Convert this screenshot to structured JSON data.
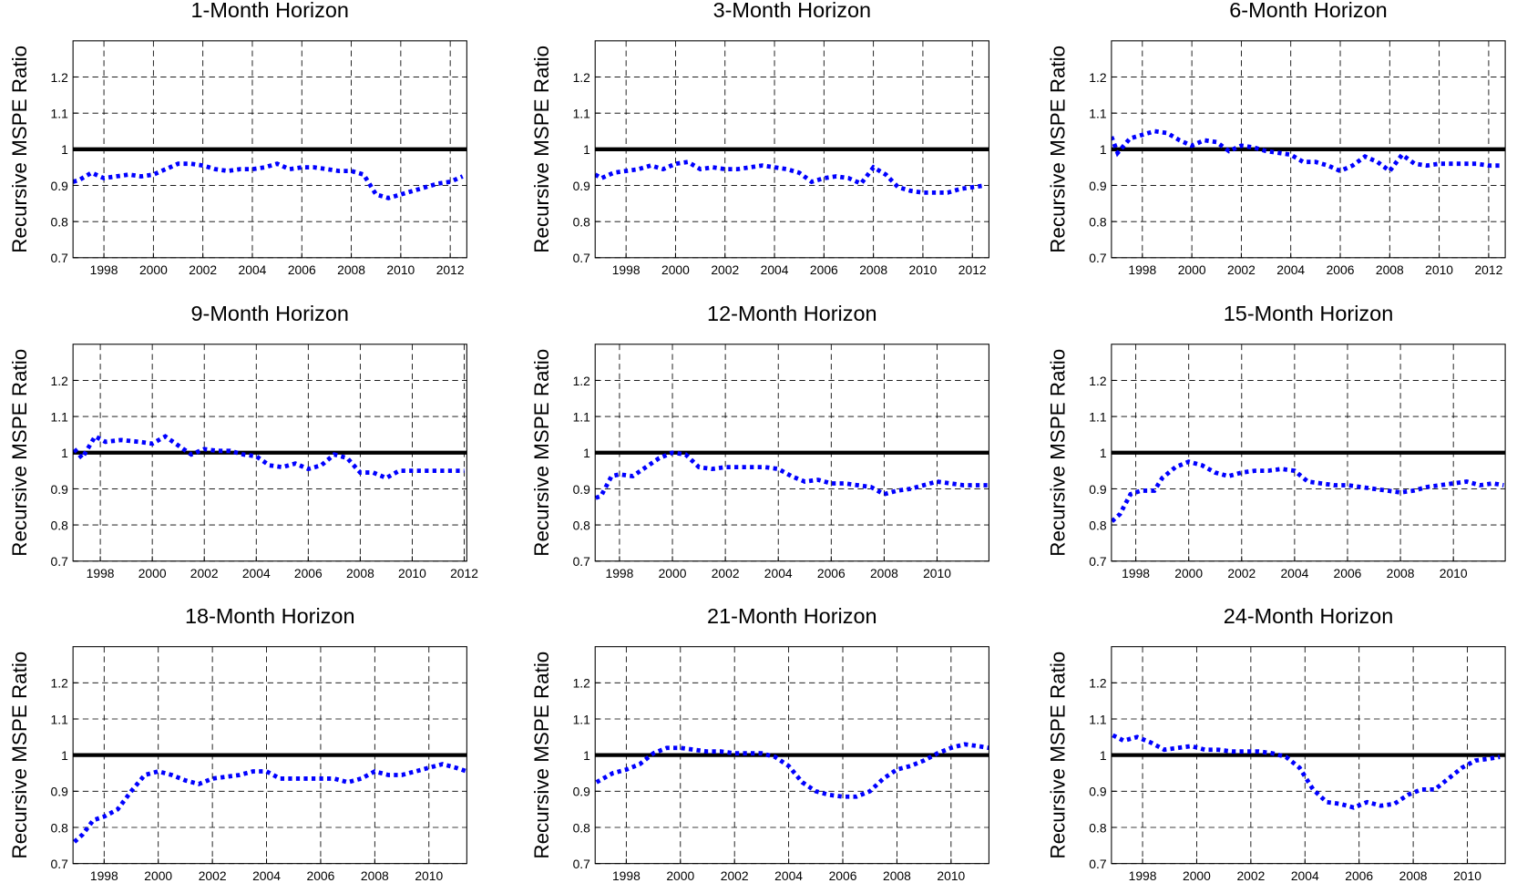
{
  "chart_data": [
    {
      "type": "line",
      "title": "1-Month Horizon",
      "ylabel": "Recursive MSPE Ratio",
      "color": "#0000ff",
      "reference_line": 1,
      "grid": true,
      "xlim": [
        1996.75,
        2012.67
      ],
      "xticks": [
        1998,
        2000,
        2002,
        2004,
        2006,
        2008,
        2010,
        2012
      ],
      "ylim": [
        0.7,
        1.3
      ],
      "yticks": [
        0.7,
        0.8,
        0.9,
        1,
        1.1,
        1.2
      ],
      "x": [
        1996.75,
        1997,
        1997.5,
        1998,
        1998.5,
        1999,
        1999.5,
        2000,
        2000.5,
        2001,
        2001.5,
        2002,
        2002.5,
        2003,
        2003.5,
        2004,
        2004.5,
        2005,
        2005.5,
        2006,
        2006.5,
        2007,
        2007.5,
        2008,
        2008.5,
        2009,
        2009.5,
        2010,
        2010.5,
        2011,
        2011.5,
        2012,
        2012.5
      ],
      "values": [
        0.91,
        0.915,
        0.935,
        0.92,
        0.925,
        0.93,
        0.925,
        0.93,
        0.945,
        0.96,
        0.96,
        0.955,
        0.945,
        0.94,
        0.945,
        0.945,
        0.95,
        0.96,
        0.945,
        0.95,
        0.95,
        0.945,
        0.94,
        0.94,
        0.93,
        0.875,
        0.865,
        0.875,
        0.885,
        0.895,
        0.905,
        0.91,
        0.925
      ]
    },
    {
      "type": "line",
      "title": "3-Month Horizon",
      "ylabel": "Recursive MSPE Ratio",
      "color": "#0000ff",
      "reference_line": 1,
      "grid": true,
      "xlim": [
        1996.75,
        2012.67
      ],
      "xticks": [
        1998,
        2000,
        2002,
        2004,
        2006,
        2008,
        2010,
        2012
      ],
      "ylim": [
        0.7,
        1.3
      ],
      "yticks": [
        0.7,
        0.8,
        0.9,
        1,
        1.1,
        1.2
      ],
      "x": [
        1996.75,
        1997,
        1997.5,
        1998,
        1998.5,
        1999,
        1999.5,
        2000,
        2000.5,
        2001,
        2001.5,
        2002,
        2002.5,
        2003,
        2003.5,
        2004,
        2004.5,
        2005,
        2005.5,
        2006,
        2006.5,
        2007,
        2007.5,
        2008,
        2008.5,
        2009,
        2009.5,
        2010,
        2010.5,
        2011,
        2011.5,
        2012,
        2012.5
      ],
      "values": [
        0.93,
        0.92,
        0.935,
        0.94,
        0.945,
        0.955,
        0.945,
        0.96,
        0.965,
        0.945,
        0.95,
        0.945,
        0.945,
        0.95,
        0.955,
        0.95,
        0.945,
        0.935,
        0.91,
        0.92,
        0.925,
        0.92,
        0.905,
        0.95,
        0.93,
        0.895,
        0.885,
        0.88,
        0.88,
        0.88,
        0.89,
        0.895,
        0.9
      ]
    },
    {
      "type": "line",
      "title": "6-Month Horizon",
      "ylabel": "Recursive MSPE Ratio",
      "color": "#0000ff",
      "reference_line": 1,
      "grid": true,
      "xlim": [
        1996.75,
        2012.67
      ],
      "xticks": [
        1998,
        2000,
        2002,
        2004,
        2006,
        2008,
        2010,
        2012
      ],
      "ylim": [
        0.7,
        1.3
      ],
      "yticks": [
        0.7,
        0.8,
        0.9,
        1,
        1.1,
        1.2
      ],
      "x": [
        1996.75,
        1997,
        1997.5,
        1998,
        1998.5,
        1999,
        1999.5,
        2000,
        2000.5,
        2001,
        2001.5,
        2002,
        2002.5,
        2003,
        2003.5,
        2004,
        2004.5,
        2005,
        2005.5,
        2006,
        2006.5,
        2007,
        2007.5,
        2008,
        2008.5,
        2009,
        2009.5,
        2010,
        2010.5,
        2011,
        2011.5,
        2012,
        2012.5
      ],
      "values": [
        1.035,
        0.99,
        1.03,
        1.04,
        1.05,
        1.045,
        1.025,
        1.01,
        1.025,
        1.02,
        0.995,
        1.01,
        1.005,
        0.995,
        0.99,
        0.985,
        0.965,
        0.965,
        0.955,
        0.94,
        0.955,
        0.98,
        0.965,
        0.94,
        0.985,
        0.96,
        0.955,
        0.96,
        0.96,
        0.96,
        0.96,
        0.955,
        0.955
      ]
    },
    {
      "type": "line",
      "title": "9-Month Horizon",
      "ylabel": "Recursive MSPE Ratio",
      "color": "#0000ff",
      "reference_line": 1,
      "grid": true,
      "xlim": [
        1996.95,
        2012.1
      ],
      "xticks": [
        1998,
        2000,
        2002,
        2004,
        2006,
        2008,
        2010,
        2012
      ],
      "ylim": [
        0.7,
        1.3
      ],
      "yticks": [
        0.7,
        0.8,
        0.9,
        1,
        1.1,
        1.2
      ],
      "x": [
        1997,
        1997.3,
        1997.8,
        1998.2,
        1998.8,
        1999.5,
        2000,
        2000.5,
        2001,
        2001.5,
        2002,
        2002.5,
        2003,
        2003.5,
        2004,
        2004.5,
        2005,
        2005.5,
        2006,
        2006.5,
        2007,
        2007.5,
        2008,
        2008.5,
        2009,
        2009.5,
        2010,
        2010.5,
        2011,
        2011.5,
        2012
      ],
      "values": [
        1.01,
        0.985,
        1.045,
        1.03,
        1.035,
        1.03,
        1.025,
        1.045,
        1.02,
        0.995,
        1.01,
        1.005,
        1.005,
        0.995,
        0.99,
        0.965,
        0.96,
        0.97,
        0.955,
        0.965,
        0.995,
        0.985,
        0.945,
        0.945,
        0.93,
        0.95,
        0.95,
        0.95,
        0.95,
        0.95,
        0.95
      ]
    },
    {
      "type": "line",
      "title": "12-Month Horizon",
      "ylabel": "Recursive MSPE Ratio",
      "color": "#0000ff",
      "reference_line": 1,
      "grid": true,
      "xlim": [
        1997.08,
        2011.96
      ],
      "xticks": [
        1998,
        2000,
        2002,
        2004,
        2006,
        2008,
        2010
      ],
      "ylim": [
        0.7,
        1.3
      ],
      "yticks": [
        0.7,
        0.8,
        0.9,
        1,
        1.1,
        1.2
      ],
      "x": [
        1997.1,
        1997.3,
        1997.7,
        1998,
        1998.5,
        1999,
        1999.5,
        2000,
        2000.5,
        2001,
        2001.5,
        2002,
        2002.5,
        2003,
        2003.5,
        2004,
        2004.5,
        2005,
        2005.5,
        2006,
        2006.5,
        2007,
        2007.5,
        2008,
        2008.5,
        2009,
        2009.5,
        2010,
        2010.5,
        2011,
        2011.5,
        2011.9
      ],
      "values": [
        0.875,
        0.88,
        0.935,
        0.94,
        0.935,
        0.96,
        0.985,
        1.0,
        0.995,
        0.96,
        0.955,
        0.96,
        0.96,
        0.96,
        0.96,
        0.955,
        0.935,
        0.92,
        0.925,
        0.915,
        0.915,
        0.91,
        0.905,
        0.885,
        0.895,
        0.9,
        0.91,
        0.92,
        0.915,
        0.91,
        0.91,
        0.91
      ]
    },
    {
      "type": "line",
      "title": "15-Month Horizon",
      "ylabel": "Recursive MSPE Ratio",
      "color": "#0000ff",
      "reference_line": 1,
      "grid": true,
      "xlim": [
        1997.08,
        2011.96
      ],
      "xticks": [
        1998,
        2000,
        2002,
        2004,
        2006,
        2008,
        2010
      ],
      "ylim": [
        0.7,
        1.3
      ],
      "yticks": [
        0.7,
        0.8,
        0.9,
        1,
        1.1,
        1.2
      ],
      "x": [
        1997.1,
        1997.4,
        1997.8,
        1998.2,
        1998.7,
        1999,
        1999.5,
        2000,
        2000.5,
        2001,
        2001.5,
        2002,
        2002.5,
        2003,
        2003.5,
        2004,
        2004.5,
        2005,
        2005.5,
        2006,
        2006.5,
        2007,
        2007.5,
        2008,
        2008.5,
        2009,
        2009.5,
        2010,
        2010.5,
        2011,
        2011.5,
        2011.9
      ],
      "values": [
        0.81,
        0.83,
        0.885,
        0.895,
        0.895,
        0.93,
        0.96,
        0.975,
        0.965,
        0.945,
        0.935,
        0.945,
        0.95,
        0.95,
        0.955,
        0.95,
        0.92,
        0.915,
        0.91,
        0.91,
        0.905,
        0.9,
        0.895,
        0.89,
        0.895,
        0.905,
        0.91,
        0.915,
        0.92,
        0.91,
        0.915,
        0.91
      ]
    },
    {
      "type": "line",
      "title": "18-Month Horizon",
      "ylabel": "Recursive MSPE Ratio",
      "color": "#0000ff",
      "reference_line": 1,
      "grid": true,
      "xlim": [
        1996.85,
        2011.4
      ],
      "xticks": [
        1998,
        2000,
        2002,
        2004,
        2006,
        2008,
        2010
      ],
      "ylim": [
        0.7,
        1.3
      ],
      "yticks": [
        0.7,
        0.8,
        0.9,
        1,
        1.1,
        1.2
      ],
      "x": [
        1996.9,
        1997.2,
        1997.6,
        1998,
        1998.5,
        1999,
        1999.5,
        2000,
        2000.5,
        2001,
        2001.5,
        2002,
        2002.5,
        2003,
        2003.5,
        2004,
        2004.5,
        2005,
        2005.5,
        2006,
        2006.5,
        2007,
        2007.5,
        2008,
        2008.5,
        2009,
        2009.5,
        2010,
        2010.5,
        2011,
        2011.4
      ],
      "values": [
        0.76,
        0.78,
        0.82,
        0.83,
        0.85,
        0.9,
        0.945,
        0.955,
        0.945,
        0.93,
        0.92,
        0.935,
        0.94,
        0.945,
        0.955,
        0.955,
        0.935,
        0.935,
        0.935,
        0.935,
        0.935,
        0.925,
        0.935,
        0.955,
        0.945,
        0.945,
        0.955,
        0.965,
        0.975,
        0.965,
        0.955
      ]
    },
    {
      "type": "line",
      "title": "21-Month Horizon",
      "ylabel": "Recursive MSPE Ratio",
      "color": "#0000ff",
      "reference_line": 1,
      "grid": true,
      "xlim": [
        1996.85,
        2011.4
      ],
      "xticks": [
        1998,
        2000,
        2002,
        2004,
        2006,
        2008,
        2010
      ],
      "ylim": [
        0.7,
        1.3
      ],
      "yticks": [
        0.7,
        0.8,
        0.9,
        1,
        1.1,
        1.2
      ],
      "x": [
        1996.9,
        1997.5,
        1998,
        1998.5,
        1999,
        1999.5,
        2000,
        2000.5,
        2001,
        2001.5,
        2002,
        2002.5,
        2003,
        2003.5,
        2004,
        2004.5,
        2005,
        2005.5,
        2006,
        2006.5,
        2007,
        2007.5,
        2008,
        2008.5,
        2009,
        2009.5,
        2010,
        2010.5,
        2011,
        2011.4
      ],
      "values": [
        0.925,
        0.95,
        0.96,
        0.975,
        1.005,
        1.02,
        1.02,
        1.015,
        1.01,
        1.01,
        1.005,
        1.005,
        1.005,
        0.995,
        0.97,
        0.925,
        0.9,
        0.89,
        0.885,
        0.885,
        0.9,
        0.935,
        0.96,
        0.97,
        0.985,
        1.005,
        1.02,
        1.03,
        1.025,
        1.02
      ]
    },
    {
      "type": "line",
      "title": "24-Month Horizon",
      "ylabel": "Recursive MSPE Ratio",
      "color": "#0000ff",
      "reference_line": 1,
      "grid": true,
      "xlim": [
        1996.85,
        2011.4
      ],
      "xticks": [
        1998,
        2000,
        2002,
        2004,
        2006,
        2008,
        2010
      ],
      "ylim": [
        0.7,
        1.3
      ],
      "yticks": [
        0.7,
        0.8,
        0.9,
        1,
        1.1,
        1.2
      ],
      "x": [
        1996.9,
        1997.3,
        1997.8,
        1998.3,
        1998.8,
        1999.3,
        1999.8,
        2000.3,
        2000.8,
        2001.3,
        2001.8,
        2002.3,
        2002.8,
        2003.3,
        2003.8,
        2004.3,
        2004.8,
        2005.3,
        2005.8,
        2006.3,
        2006.8,
        2007.3,
        2007.8,
        2008.3,
        2008.8,
        2009.3,
        2009.8,
        2010.3,
        2010.8,
        2011.2
      ],
      "values": [
        1.055,
        1.04,
        1.05,
        1.035,
        1.015,
        1.02,
        1.025,
        1.015,
        1.015,
        1.01,
        1.01,
        1.01,
        1.005,
        0.995,
        0.965,
        0.905,
        0.87,
        0.865,
        0.855,
        0.87,
        0.86,
        0.865,
        0.89,
        0.905,
        0.905,
        0.935,
        0.965,
        0.985,
        0.99,
        0.995
      ]
    }
  ]
}
